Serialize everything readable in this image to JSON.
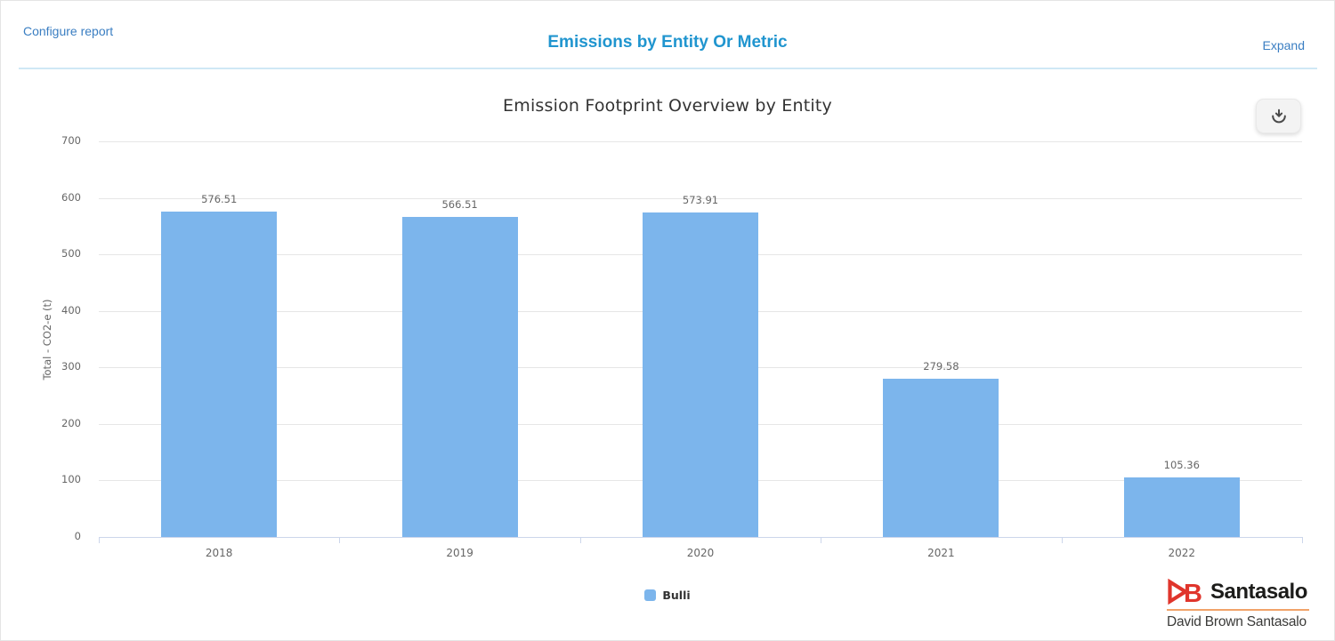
{
  "header": {
    "configure_label": "Configure report",
    "title": "Emissions by Entity Or Metric",
    "expand_label": "Expand"
  },
  "icons": {
    "download": "tray-arrow-down"
  },
  "chart_data": {
    "type": "bar",
    "title": "Emission Footprint Overview by Entity",
    "categories": [
      "2018",
      "2019",
      "2020",
      "2021",
      "2022"
    ],
    "series": [
      {
        "name": "Bulli",
        "color": "#7cb5ec",
        "values": [
          576.51,
          566.51,
          573.91,
          279.58,
          105.36
        ]
      }
    ],
    "data_labels": [
      "576.51",
      "566.51",
      "573.91",
      "279.58",
      "105.36"
    ],
    "xlabel": "",
    "ylabel": "Total - CO2-e (t)",
    "ylim": [
      0,
      700
    ],
    "ytick_step": 100,
    "grid": true,
    "legend_position": "bottom"
  },
  "footer": {
    "logo_mark": "DB",
    "logo_brand": "Santasalo",
    "logo_subtext": "David Brown Santasalo"
  },
  "colors": {
    "bar": "#7cb5ec",
    "title_accent": "#2095cf",
    "link": "#3a7ec2",
    "gridline": "#e6e6e6",
    "axis_line": "#ccd6eb",
    "label_text": "#666666",
    "logo_red": "#e0352c",
    "logo_underline": "#f1a369"
  }
}
